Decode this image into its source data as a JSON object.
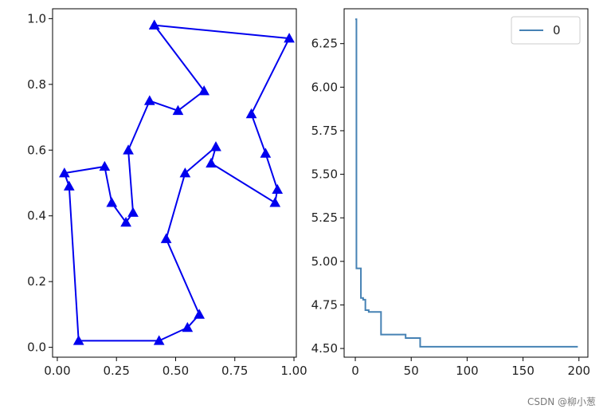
{
  "chart_data": [
    {
      "type": "line",
      "markers": "triangle",
      "color": "#0000ee",
      "xlim": [
        -0.02,
        1.01
      ],
      "ylim": [
        -0.03,
        1.03
      ],
      "x_ticks": [
        0.0,
        0.25,
        0.5,
        0.75,
        1.0
      ],
      "x_tick_labels": [
        "0.00",
        "0.25",
        "0.50",
        "0.75",
        "1.00"
      ],
      "y_ticks": [
        0.0,
        0.2,
        0.4,
        0.6,
        0.8,
        1.0
      ],
      "y_tick_labels": [
        "0.0",
        "0.2",
        "0.4",
        "0.6",
        "0.8",
        "1.0"
      ],
      "points": [
        [
          0.41,
          0.98
        ],
        [
          0.98,
          0.94
        ],
        [
          0.82,
          0.71
        ],
        [
          0.88,
          0.59
        ],
        [
          0.93,
          0.48
        ],
        [
          0.92,
          0.44
        ],
        [
          0.65,
          0.56
        ],
        [
          0.67,
          0.61
        ],
        [
          0.54,
          0.53
        ],
        [
          0.46,
          0.33
        ],
        [
          0.6,
          0.1
        ],
        [
          0.55,
          0.06
        ],
        [
          0.43,
          0.02
        ],
        [
          0.09,
          0.02
        ],
        [
          0.05,
          0.49
        ],
        [
          0.03,
          0.53
        ],
        [
          0.2,
          0.55
        ],
        [
          0.23,
          0.44
        ],
        [
          0.29,
          0.38
        ],
        [
          0.32,
          0.41
        ],
        [
          0.3,
          0.6
        ],
        [
          0.39,
          0.75
        ],
        [
          0.51,
          0.72
        ],
        [
          0.62,
          0.78
        ],
        [
          0.41,
          0.98
        ]
      ]
    },
    {
      "type": "line",
      "color": "#4682b4",
      "xlim": [
        -10,
        208
      ],
      "ylim": [
        4.45,
        6.45
      ],
      "x_ticks": [
        0,
        50,
        100,
        150,
        200
      ],
      "x_tick_labels": [
        "0",
        "50",
        "100",
        "150",
        "200"
      ],
      "y_ticks": [
        4.5,
        4.75,
        5.0,
        5.25,
        5.5,
        5.75,
        6.0,
        6.25
      ],
      "y_tick_labels": [
        "4.50",
        "4.75",
        "5.00",
        "5.25",
        "5.50",
        "5.75",
        "6.00",
        "6.25"
      ],
      "legend": {
        "position": "top-right",
        "entries": [
          "0"
        ]
      },
      "series": [
        {
          "name": "0",
          "x": [
            0,
            1,
            1,
            5,
            5,
            7,
            7,
            9,
            9,
            12,
            12,
            23,
            23,
            45,
            45,
            58,
            58,
            199
          ],
          "values": [
            6.39,
            6.39,
            4.96,
            4.96,
            4.79,
            4.79,
            4.78,
            4.78,
            4.72,
            4.72,
            4.71,
            4.71,
            4.58,
            4.58,
            4.56,
            4.56,
            4.51,
            4.51
          ]
        }
      ]
    }
  ],
  "watermark": "CSDN @柳小葱"
}
